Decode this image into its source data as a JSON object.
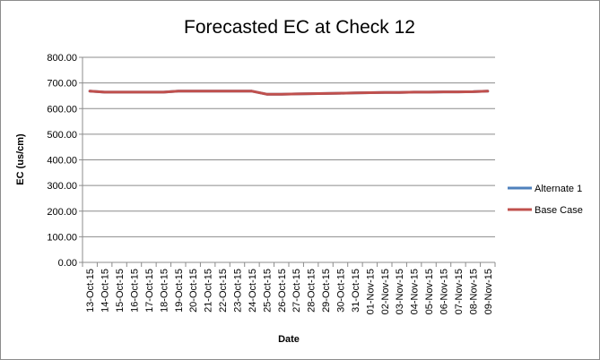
{
  "chart_data": {
    "type": "line",
    "title": "Forecasted EC at Check 12",
    "xlabel": "Date",
    "ylabel": "EC (us/cm)",
    "ylim": [
      0,
      800
    ],
    "y_ticks": [
      "0.00",
      "100.00",
      "200.00",
      "300.00",
      "400.00",
      "500.00",
      "600.00",
      "700.00",
      "800.00"
    ],
    "categories": [
      "13-Oct-15",
      "14-Oct-15",
      "15-Oct-15",
      "16-Oct-15",
      "17-Oct-15",
      "18-Oct-15",
      "19-Oct-15",
      "20-Oct-15",
      "21-Oct-15",
      "22-Oct-15",
      "23-Oct-15",
      "24-Oct-15",
      "25-Oct-15",
      "26-Oct-15",
      "27-Oct-15",
      "28-Oct-15",
      "29-Oct-15",
      "30-Oct-15",
      "31-Oct-15",
      "01-Nov-15",
      "02-Nov-15",
      "03-Nov-15",
      "04-Nov-15",
      "05-Nov-15",
      "06-Nov-15",
      "07-Nov-15",
      "08-Nov-15",
      "09-Nov-15"
    ],
    "series": [
      {
        "name": "Alternate 1",
        "color": "#4f81bd",
        "values": [
          668,
          664,
          664,
          664,
          664,
          664,
          668,
          668,
          668,
          668,
          668,
          668,
          656,
          656,
          657,
          658,
          659,
          660,
          661,
          662,
          663,
          663,
          664,
          664,
          665,
          665,
          666,
          668
        ]
      },
      {
        "name": "Base Case",
        "color": "#c0504d",
        "values": [
          668,
          664,
          664,
          664,
          664,
          664,
          668,
          668,
          668,
          668,
          668,
          668,
          656,
          656,
          657,
          658,
          659,
          660,
          661,
          662,
          663,
          663,
          664,
          664,
          665,
          665,
          666,
          668
        ]
      }
    ],
    "grid": true,
    "legend": "right"
  }
}
